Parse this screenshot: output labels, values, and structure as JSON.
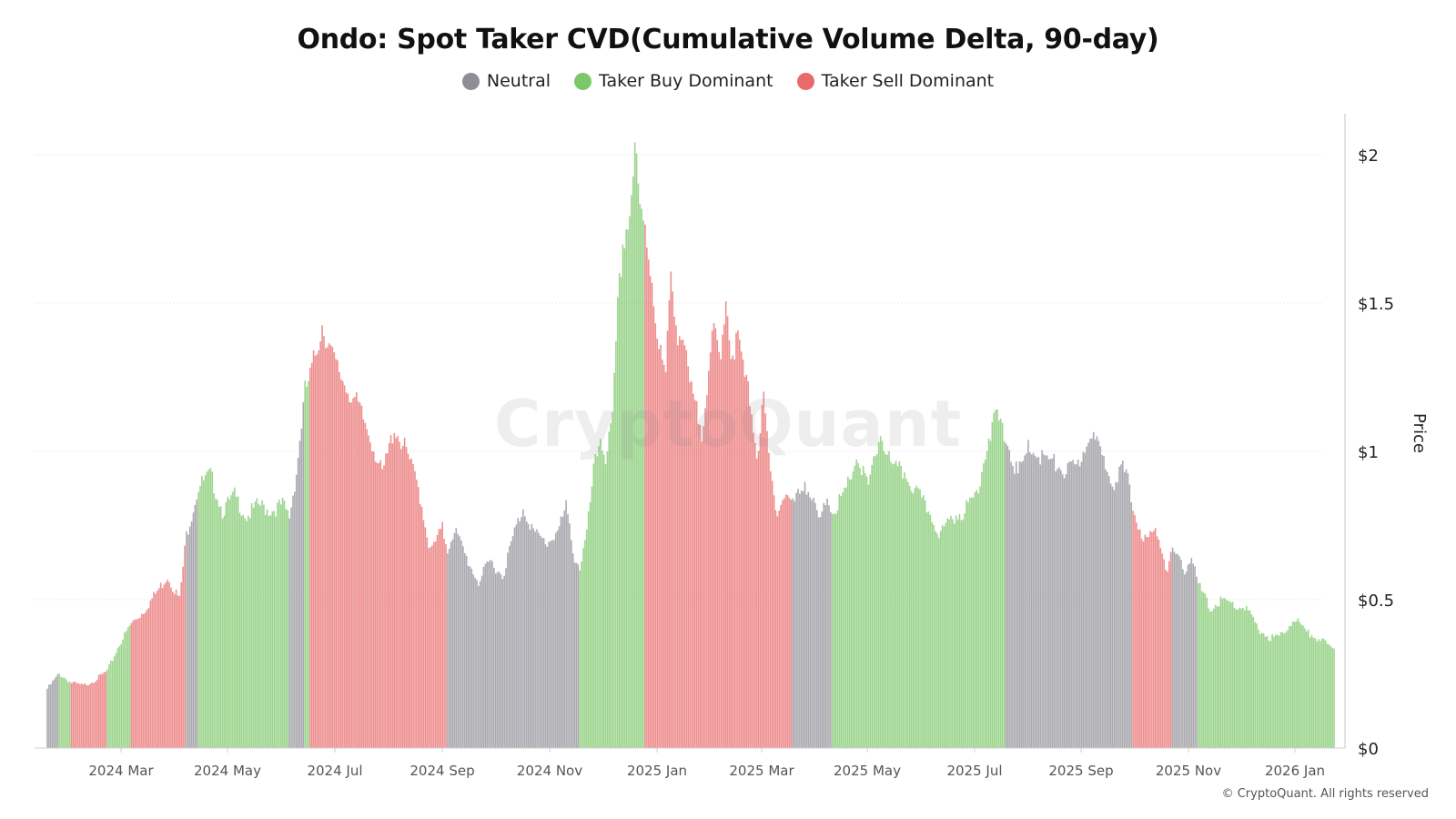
{
  "chart_data": {
    "type": "bar",
    "title": "Ondo: Spot Taker CVD(Cumulative Volume Delta, 90-day)",
    "ylabel": "Price",
    "ylim": [
      0,
      2.1
    ],
    "grid": true,
    "legend_placement": "top-center",
    "yticks": [
      {
        "value": 0,
        "label": "$0"
      },
      {
        "value": 0.5,
        "label": "$0.5"
      },
      {
        "value": 1,
        "label": "$1"
      },
      {
        "value": 1.5,
        "label": "$1.5"
      },
      {
        "value": 2,
        "label": "$2"
      }
    ],
    "xticks": [
      "2024 Mar",
      "2024 May",
      "2024 Jul",
      "2024 Sep",
      "2024 Nov",
      "2025 Jan",
      "2025 Mar",
      "2025 May",
      "2025 Jul",
      "2025 Sep",
      "2025 Nov",
      "2026 Jan"
    ],
    "categories_description": "daily price bars, 2024-01-18 to 2026-02-05 (weekly samples shown)",
    "series": [
      {
        "name": "Neutral",
        "color": "#8e8e96"
      },
      {
        "name": "Taker Buy Dominant",
        "color": "#7cc76a"
      },
      {
        "name": "Taker Sell Dominant",
        "color": "#e86a6a"
      }
    ],
    "bars": [
      {
        "date": "2024-01-18",
        "value": 0.2,
        "regime": "Neutral"
      },
      {
        "date": "2024-01-25",
        "value": 0.25,
        "regime": "Taker Buy Dominant"
      },
      {
        "date": "2024-02-01",
        "value": 0.22,
        "regime": "Taker Sell Dominant"
      },
      {
        "date": "2024-02-08",
        "value": 0.21,
        "regime": "Taker Sell Dominant"
      },
      {
        "date": "2024-02-15",
        "value": 0.23,
        "regime": "Taker Sell Dominant"
      },
      {
        "date": "2024-02-22",
        "value": 0.26,
        "regime": "Taker Buy Dominant"
      },
      {
        "date": "2024-02-29",
        "value": 0.35,
        "regime": "Taker Buy Dominant"
      },
      {
        "date": "2024-03-07",
        "value": 0.42,
        "regime": "Taker Sell Dominant"
      },
      {
        "date": "2024-03-14",
        "value": 0.46,
        "regime": "Taker Sell Dominant"
      },
      {
        "date": "2024-03-21",
        "value": 0.52,
        "regime": "Taker Sell Dominant"
      },
      {
        "date": "2024-03-28",
        "value": 0.58,
        "regime": "Taker Sell Dominant"
      },
      {
        "date": "2024-04-04",
        "value": 0.5,
        "regime": "Taker Sell Dominant"
      },
      {
        "date": "2024-04-08",
        "value": 0.72,
        "regime": "Neutral"
      },
      {
        "date": "2024-04-15",
        "value": 0.88,
        "regime": "Taker Buy Dominant"
      },
      {
        "date": "2024-04-22",
        "value": 0.92,
        "regime": "Taker Buy Dominant"
      },
      {
        "date": "2024-04-29",
        "value": 0.8,
        "regime": "Taker Buy Dominant"
      },
      {
        "date": "2024-05-06",
        "value": 0.85,
        "regime": "Taker Buy Dominant"
      },
      {
        "date": "2024-05-13",
        "value": 0.78,
        "regime": "Taker Buy Dominant"
      },
      {
        "date": "2024-05-20",
        "value": 0.82,
        "regime": "Taker Buy Dominant"
      },
      {
        "date": "2024-05-27",
        "value": 0.8,
        "regime": "Taker Buy Dominant"
      },
      {
        "date": "2024-06-03",
        "value": 0.82,
        "regime": "Taker Buy Dominant"
      },
      {
        "date": "2024-06-07",
        "value": 0.78,
        "regime": "Neutral"
      },
      {
        "date": "2024-06-11",
        "value": 0.93,
        "regime": "Neutral"
      },
      {
        "date": "2024-06-16",
        "value": 1.2,
        "regime": "Taker Buy Dominant"
      },
      {
        "date": "2024-06-19",
        "value": 1.25,
        "regime": "Taker Sell Dominant"
      },
      {
        "date": "2024-06-23",
        "value": 1.35,
        "regime": "Taker Sell Dominant"
      },
      {
        "date": "2024-06-26",
        "value": 1.43,
        "regime": "Taker Sell Dominant"
      },
      {
        "date": "2024-07-03",
        "value": 1.3,
        "regime": "Taker Sell Dominant"
      },
      {
        "date": "2024-07-10",
        "value": 1.22,
        "regime": "Taker Sell Dominant"
      },
      {
        "date": "2024-07-17",
        "value": 1.15,
        "regime": "Taker Sell Dominant"
      },
      {
        "date": "2024-07-24",
        "value": 1.05,
        "regime": "Taker Sell Dominant"
      },
      {
        "date": "2024-07-31",
        "value": 0.92,
        "regime": "Taker Sell Dominant"
      },
      {
        "date": "2024-08-07",
        "value": 1.08,
        "regime": "Taker Sell Dominant"
      },
      {
        "date": "2024-08-14",
        "value": 1.0,
        "regime": "Taker Sell Dominant"
      },
      {
        "date": "2024-08-21",
        "value": 0.88,
        "regime": "Taker Sell Dominant"
      },
      {
        "date": "2024-08-28",
        "value": 0.66,
        "regime": "Taker Sell Dominant"
      },
      {
        "date": "2024-09-04",
        "value": 0.74,
        "regime": "Taker Sell Dominant"
      },
      {
        "date": "2024-09-07",
        "value": 0.67,
        "regime": "Neutral"
      },
      {
        "date": "2024-09-11",
        "value": 0.74,
        "regime": "Neutral"
      },
      {
        "date": "2024-09-18",
        "value": 0.64,
        "regime": "Neutral"
      },
      {
        "date": "2024-09-25",
        "value": 0.56,
        "regime": "Neutral"
      },
      {
        "date": "2024-10-02",
        "value": 0.63,
        "regime": "Neutral"
      },
      {
        "date": "2024-10-09",
        "value": 0.58,
        "regime": "Neutral"
      },
      {
        "date": "2024-10-16",
        "value": 0.73,
        "regime": "Neutral"
      },
      {
        "date": "2024-10-21",
        "value": 0.81,
        "regime": "Neutral"
      },
      {
        "date": "2024-10-28",
        "value": 0.72,
        "regime": "Neutral"
      },
      {
        "date": "2024-11-04",
        "value": 0.69,
        "regime": "Neutral"
      },
      {
        "date": "2024-11-11",
        "value": 0.74,
        "regime": "Neutral"
      },
      {
        "date": "2024-11-15",
        "value": 0.81,
        "regime": "Neutral"
      },
      {
        "date": "2024-11-20",
        "value": 0.64,
        "regime": "Neutral"
      },
      {
        "date": "2024-11-23",
        "value": 0.61,
        "regime": "Taker Buy Dominant"
      },
      {
        "date": "2024-11-27",
        "value": 0.72,
        "regime": "Taker Buy Dominant"
      },
      {
        "date": "2024-12-01",
        "value": 0.93,
        "regime": "Taker Buy Dominant"
      },
      {
        "date": "2024-12-05",
        "value": 1.05,
        "regime": "Taker Buy Dominant"
      },
      {
        "date": "2024-12-08",
        "value": 0.98,
        "regime": "Taker Buy Dominant"
      },
      {
        "date": "2024-12-12",
        "value": 1.1,
        "regime": "Taker Buy Dominant"
      },
      {
        "date": "2024-12-15",
        "value": 1.48,
        "regime": "Taker Buy Dominant"
      },
      {
        "date": "2024-12-18",
        "value": 1.7,
        "regime": "Taker Buy Dominant"
      },
      {
        "date": "2024-12-22",
        "value": 1.8,
        "regime": "Taker Buy Dominant"
      },
      {
        "date": "2024-12-25",
        "value": 2.02,
        "regime": "Taker Buy Dominant"
      },
      {
        "date": "2024-12-28",
        "value": 1.8,
        "regime": "Taker Buy Dominant"
      },
      {
        "date": "2024-12-31",
        "value": 1.75,
        "regime": "Taker Sell Dominant"
      },
      {
        "date": "2025-01-04",
        "value": 1.58,
        "regime": "Taker Sell Dominant"
      },
      {
        "date": "2025-01-08",
        "value": 1.35,
        "regime": "Taker Sell Dominant"
      },
      {
        "date": "2025-01-12",
        "value": 1.25,
        "regime": "Taker Sell Dominant"
      },
      {
        "date": "2025-01-15",
        "value": 1.6,
        "regime": "Taker Sell Dominant"
      },
      {
        "date": "2025-01-19",
        "value": 1.4,
        "regime": "Taker Sell Dominant"
      },
      {
        "date": "2025-01-22",
        "value": 1.38,
        "regime": "Taker Sell Dominant"
      },
      {
        "date": "2025-01-26",
        "value": 1.22,
        "regime": "Taker Sell Dominant"
      },
      {
        "date": "2025-02-02",
        "value": 1.07,
        "regime": "Taker Sell Dominant"
      },
      {
        "date": "2025-02-06",
        "value": 1.28,
        "regime": "Taker Sell Dominant"
      },
      {
        "date": "2025-02-09",
        "value": 1.4,
        "regime": "Taker Sell Dominant"
      },
      {
        "date": "2025-02-13",
        "value": 1.3,
        "regime": "Taker Sell Dominant"
      },
      {
        "date": "2025-02-16",
        "value": 1.55,
        "regime": "Taker Sell Dominant"
      },
      {
        "date": "2025-02-19",
        "value": 1.32,
        "regime": "Taker Sell Dominant"
      },
      {
        "date": "2025-02-23",
        "value": 1.38,
        "regime": "Taker Sell Dominant"
      },
      {
        "date": "2025-02-27",
        "value": 1.25,
        "regime": "Taker Sell Dominant"
      },
      {
        "date": "2025-03-03",
        "value": 1.15,
        "regime": "Taker Sell Dominant"
      },
      {
        "date": "2025-03-06",
        "value": 0.98,
        "regime": "Taker Sell Dominant"
      },
      {
        "date": "2025-03-10",
        "value": 1.17,
        "regime": "Taker Sell Dominant"
      },
      {
        "date": "2025-03-14",
        "value": 0.92,
        "regime": "Taker Sell Dominant"
      },
      {
        "date": "2025-03-18",
        "value": 0.8,
        "regime": "Taker Sell Dominant"
      },
      {
        "date": "2025-03-23",
        "value": 0.86,
        "regime": "Taker Sell Dominant"
      },
      {
        "date": "2025-03-27",
        "value": 0.82,
        "regime": "Neutral"
      },
      {
        "date": "2025-04-03",
        "value": 0.9,
        "regime": "Neutral"
      },
      {
        "date": "2025-04-08",
        "value": 0.82,
        "regime": "Neutral"
      },
      {
        "date": "2025-04-12",
        "value": 0.76,
        "regime": "Neutral"
      },
      {
        "date": "2025-04-16",
        "value": 0.85,
        "regime": "Neutral"
      },
      {
        "date": "2025-04-19",
        "value": 0.8,
        "regime": "Taker Buy Dominant"
      },
      {
        "date": "2025-04-26",
        "value": 0.85,
        "regime": "Taker Buy Dominant"
      },
      {
        "date": "2025-05-03",
        "value": 0.98,
        "regime": "Taker Buy Dominant"
      },
      {
        "date": "2025-05-10",
        "value": 0.88,
        "regime": "Taker Buy Dominant"
      },
      {
        "date": "2025-05-17",
        "value": 1.06,
        "regime": "Taker Buy Dominant"
      },
      {
        "date": "2025-05-24",
        "value": 0.94,
        "regime": "Taker Buy Dominant"
      },
      {
        "date": "2025-05-31",
        "value": 0.93,
        "regime": "Taker Buy Dominant"
      },
      {
        "date": "2025-06-07",
        "value": 0.86,
        "regime": "Taker Buy Dominant"
      },
      {
        "date": "2025-06-14",
        "value": 0.8,
        "regime": "Taker Buy Dominant"
      },
      {
        "date": "2025-06-21",
        "value": 0.72,
        "regime": "Taker Buy Dominant"
      },
      {
        "date": "2025-06-28",
        "value": 0.78,
        "regime": "Taker Buy Dominant"
      },
      {
        "date": "2025-07-05",
        "value": 0.8,
        "regime": "Taker Buy Dominant"
      },
      {
        "date": "2025-07-12",
        "value": 0.86,
        "regime": "Taker Buy Dominant"
      },
      {
        "date": "2025-07-19",
        "value": 1.05,
        "regime": "Taker Buy Dominant"
      },
      {
        "date": "2025-07-24",
        "value": 1.12,
        "regime": "Taker Buy Dominant"
      },
      {
        "date": "2025-07-29",
        "value": 1.04,
        "regime": "Neutral"
      },
      {
        "date": "2025-08-05",
        "value": 0.92,
        "regime": "Neutral"
      },
      {
        "date": "2025-08-12",
        "value": 1.02,
        "regime": "Neutral"
      },
      {
        "date": "2025-08-19",
        "value": 0.98,
        "regime": "Neutral"
      },
      {
        "date": "2025-08-26",
        "value": 0.96,
        "regime": "Neutral"
      },
      {
        "date": "2025-09-02",
        "value": 0.93,
        "regime": "Neutral"
      },
      {
        "date": "2025-09-09",
        "value": 0.95,
        "regime": "Neutral"
      },
      {
        "date": "2025-09-16",
        "value": 1.07,
        "regime": "Neutral"
      },
      {
        "date": "2025-09-23",
        "value": 0.98,
        "regime": "Neutral"
      },
      {
        "date": "2025-09-30",
        "value": 0.9,
        "regime": "Neutral"
      },
      {
        "date": "2025-10-04",
        "value": 0.95,
        "regime": "Neutral"
      },
      {
        "date": "2025-10-08",
        "value": 0.9,
        "regime": "Neutral"
      },
      {
        "date": "2025-10-11",
        "value": 0.8,
        "regime": "Taker Sell Dominant"
      },
      {
        "date": "2025-10-18",
        "value": 0.7,
        "regime": "Taker Sell Dominant"
      },
      {
        "date": "2025-10-25",
        "value": 0.73,
        "regime": "Taker Sell Dominant"
      },
      {
        "date": "2025-10-31",
        "value": 0.6,
        "regime": "Taker Sell Dominant"
      },
      {
        "date": "2025-11-03",
        "value": 0.66,
        "regime": "Neutral"
      },
      {
        "date": "2025-11-10",
        "value": 0.6,
        "regime": "Neutral"
      },
      {
        "date": "2025-11-14",
        "value": 0.65,
        "regime": "Neutral"
      },
      {
        "date": "2025-11-18",
        "value": 0.55,
        "regime": "Taker Buy Dominant"
      },
      {
        "date": "2025-11-25",
        "value": 0.47,
        "regime": "Taker Buy Dominant"
      },
      {
        "date": "2025-12-02",
        "value": 0.5,
        "regime": "Taker Buy Dominant"
      },
      {
        "date": "2025-12-09",
        "value": 0.48,
        "regime": "Taker Buy Dominant"
      },
      {
        "date": "2025-12-16",
        "value": 0.47,
        "regime": "Taker Buy Dominant"
      },
      {
        "date": "2025-12-23",
        "value": 0.4,
        "regime": "Taker Buy Dominant"
      },
      {
        "date": "2025-12-30",
        "value": 0.37,
        "regime": "Taker Buy Dominant"
      },
      {
        "date": "2026-01-06",
        "value": 0.38,
        "regime": "Taker Buy Dominant"
      },
      {
        "date": "2026-01-13",
        "value": 0.44,
        "regime": "Taker Buy Dominant"
      },
      {
        "date": "2026-01-20",
        "value": 0.39,
        "regime": "Taker Buy Dominant"
      },
      {
        "date": "2026-01-27",
        "value": 0.37,
        "regime": "Taker Buy Dominant"
      },
      {
        "date": "2026-02-05",
        "value": 0.33,
        "regime": "Taker Buy Dominant"
      }
    ]
  },
  "watermark": "CryptoQuant",
  "copyright": "© CryptoQuant. All rights reserved"
}
